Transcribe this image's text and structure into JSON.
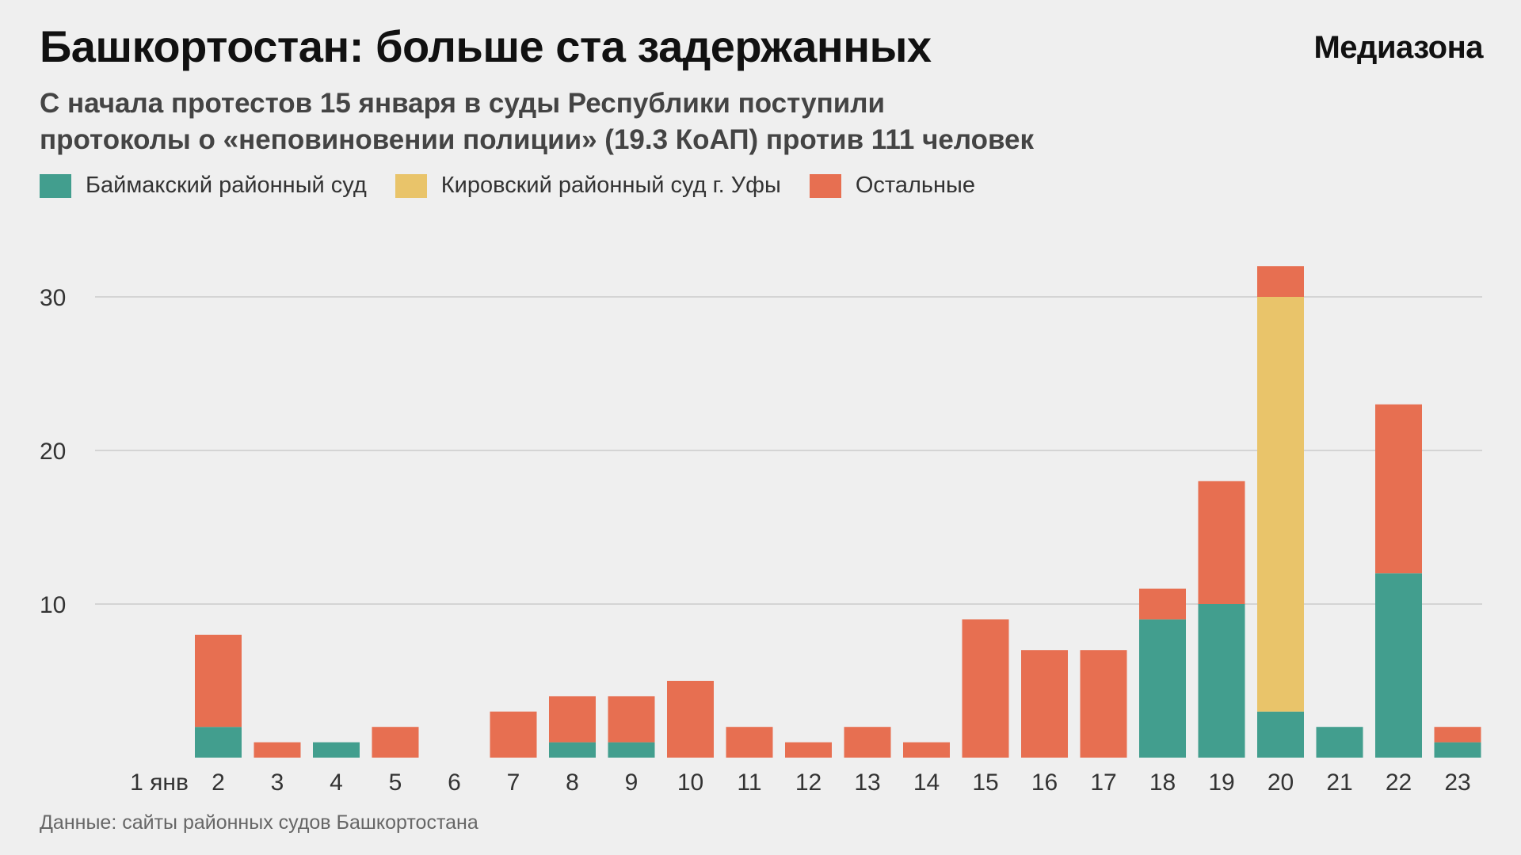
{
  "title": "Башкортостан: больше ста задержанных",
  "logo": "Медиазона",
  "subtitle": [
    "С начала протестов 15 января в суды Республики поступили",
    "протоколы о «неповиновении полиции» (19.3 КоАП) против 111 человек"
  ],
  "source": "Данные: сайты районных судов Башкортостана",
  "chart_data": {
    "type": "bar",
    "stacked": true,
    "categories": [
      "1 янв",
      "2",
      "3",
      "4",
      "5",
      "6",
      "7",
      "8",
      "9",
      "10",
      "11",
      "12",
      "13",
      "14",
      "15",
      "16",
      "17",
      "18",
      "19",
      "20",
      "21",
      "22",
      "23"
    ],
    "series": [
      {
        "name": "Баймакский районный суд",
        "color": "#429e8e",
        "values": [
          0,
          2,
          0,
          1,
          0,
          0,
          0,
          1,
          1,
          0,
          0,
          0,
          0,
          0,
          0,
          0,
          0,
          9,
          10,
          3,
          2,
          12,
          1
        ]
      },
      {
        "name": "Кировский районный суд г. Уфы",
        "color": "#e9c46a",
        "values": [
          0,
          0,
          0,
          0,
          0,
          0,
          0,
          0,
          0,
          0,
          0,
          0,
          0,
          0,
          0,
          0,
          0,
          0,
          0,
          27,
          0,
          0,
          0
        ]
      },
      {
        "name": "Остальные",
        "color": "#e76f51",
        "values": [
          0,
          6,
          1,
          0,
          2,
          0,
          3,
          3,
          3,
          5,
          2,
          1,
          2,
          1,
          9,
          7,
          7,
          2,
          8,
          2,
          0,
          11,
          1
        ]
      }
    ],
    "yticks": [
      10,
      20,
      30
    ],
    "ylim": [
      0,
      34
    ],
    "grid": true,
    "legend": "top-left",
    "xlabel": "",
    "ylabel": ""
  }
}
